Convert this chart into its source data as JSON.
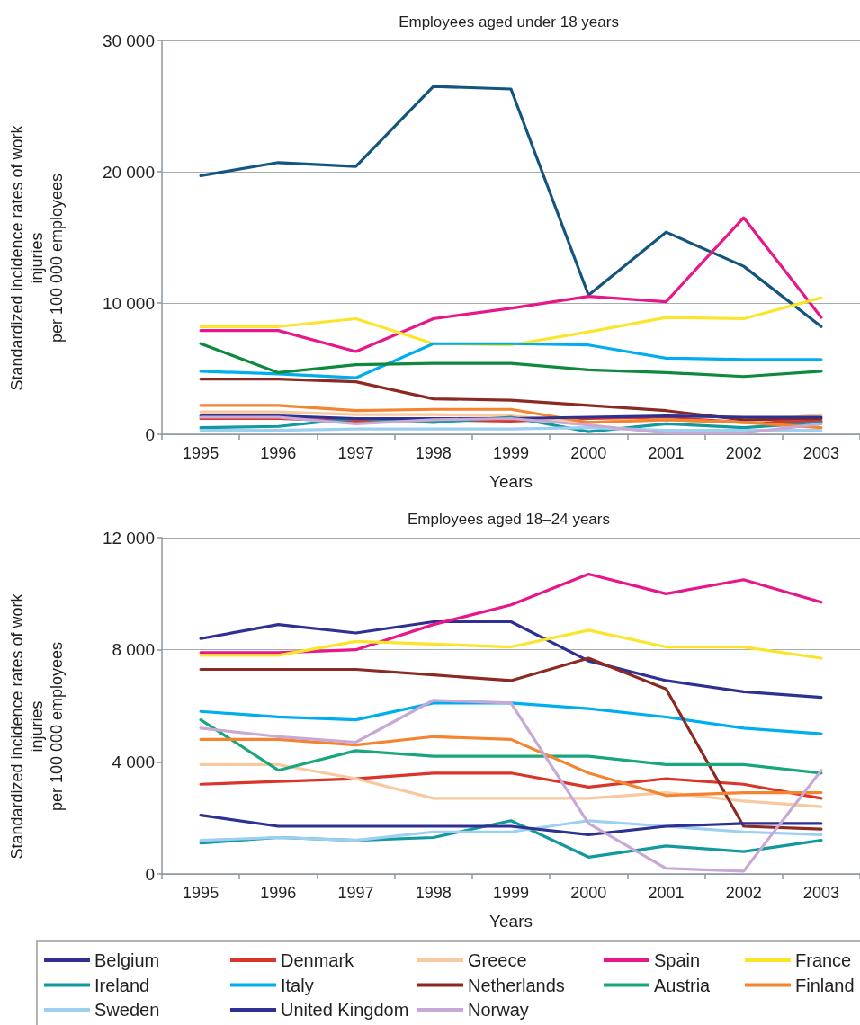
{
  "chart_data": [
    {
      "type": "line",
      "title": "Employees aged under 18 years",
      "xlabel": "Years",
      "ylabel": "Standardized incidence rates of work\ninjuries\nper 100 000 employees",
      "categories": [
        "1995",
        "1996",
        "1997",
        "1998",
        "1999",
        "2000",
        "2001",
        "2002",
        "2003"
      ],
      "ylim": [
        0,
        30000
      ],
      "yticks": [
        0,
        {
          "value": 10000,
          "label": "10 000"
        },
        {
          "value": 20000,
          "label": "20 000"
        },
        {
          "value": 30000,
          "label": "30 000"
        }
      ],
      "grid": "y",
      "marker": "none",
      "line_style": "solid",
      "series": [
        {
          "color": "#13557f",
          "values": [
            19700,
            20700,
            20400,
            26500,
            26300,
            10600,
            15400,
            12800,
            8200
          ]
        },
        {
          "color": "#d9352b",
          "values": [
            1200,
            1200,
            1000,
            1100,
            1000,
            1200,
            1300,
            900,
            1000
          ]
        },
        {
          "color": "#f6c9a0",
          "values": [
            1700,
            1700,
            1500,
            1500,
            1400,
            900,
            1100,
            900,
            1500
          ]
        },
        {
          "color": "#e8168b",
          "values": [
            7900,
            7900,
            6300,
            8800,
            9600,
            10500,
            10100,
            16500,
            8900
          ]
        },
        {
          "color": "#fbe52a",
          "values": [
            8200,
            8200,
            8800,
            6900,
            6800,
            7800,
            8900,
            8800,
            10400
          ]
        },
        {
          "color": "#12999e",
          "values": [
            500,
            600,
            1200,
            900,
            1300,
            200,
            800,
            500,
            900
          ]
        },
        {
          "color": "#00aeef",
          "values": [
            4800,
            4600,
            4300,
            6900,
            6900,
            6800,
            5800,
            5700,
            5700
          ]
        },
        {
          "color": "#8b2a23",
          "values": [
            4200,
            4200,
            4000,
            2700,
            2600,
            2200,
            1800,
            1100,
            1200
          ]
        },
        {
          "color": "#10893f",
          "values": [
            6900,
            4700,
            5300,
            5400,
            5400,
            4900,
            4700,
            4400,
            4800
          ]
        },
        {
          "color": "#f58430",
          "values": [
            2200,
            2200,
            1800,
            1900,
            1900,
            900,
            1100,
            900,
            500
          ]
        },
        {
          "color": "#9dd0f0",
          "values": [
            300,
            300,
            400,
            400,
            400,
            500,
            300,
            300,
            300
          ]
        },
        {
          "color": "#2e3192",
          "values": [
            1400,
            1400,
            1200,
            1200,
            1200,
            1300,
            1400,
            1300,
            1300
          ]
        },
        {
          "color": "#c8a8d4",
          "values": [
            1300,
            1300,
            800,
            1100,
            1200,
            700,
            100,
            100,
            800
          ]
        }
      ]
    },
    {
      "type": "line",
      "title": "Employees aged 18–24 years",
      "xlabel": "Years",
      "ylabel": "Standardized incidence rates of work\ninjuries\nper 100 000 employees",
      "categories": [
        "1995",
        "1996",
        "1997",
        "1998",
        "1999",
        "2000",
        "2001",
        "2002",
        "2003"
      ],
      "ylim": [
        0,
        12000
      ],
      "yticks": [
        0,
        {
          "value": 4000,
          "label": "4 000"
        },
        {
          "value": 8000,
          "label": "8 000"
        },
        {
          "value": 12000,
          "label": "12 000"
        }
      ],
      "grid": "y",
      "marker": "none",
      "line_style": "solid",
      "legend": "bottom",
      "series": [
        {
          "name": "Belgium",
          "color": "#2e3192",
          "values": [
            8400,
            8900,
            8600,
            9000,
            9000,
            7600,
            6900,
            6500,
            6300
          ]
        },
        {
          "name": "Denmark",
          "color": "#d9352b",
          "values": [
            3200,
            3300,
            3400,
            3600,
            3600,
            3100,
            3400,
            3200,
            2700
          ]
        },
        {
          "name": "Greece",
          "color": "#f6c9a0",
          "values": [
            3900,
            3900,
            3400,
            2700,
            2700,
            2700,
            2900,
            2600,
            2400
          ]
        },
        {
          "name": "Spain",
          "color": "#e8168b",
          "values": [
            7900,
            7900,
            8000,
            8900,
            9600,
            10700,
            10000,
            10500,
            9700
          ]
        },
        {
          "name": "France",
          "color": "#fbe52a",
          "values": [
            7800,
            7800,
            8300,
            8200,
            8100,
            8700,
            8100,
            8100,
            7700
          ]
        },
        {
          "name": "Ireland",
          "color": "#12999e",
          "values": [
            1100,
            1300,
            1200,
            1300,
            1900,
            600,
            1000,
            800,
            1200
          ]
        },
        {
          "name": "Italy",
          "color": "#00aeef",
          "values": [
            5800,
            5600,
            5500,
            6100,
            6100,
            5900,
            5600,
            5200,
            5000
          ]
        },
        {
          "name": "Netherlands",
          "color": "#8b2a23",
          "values": [
            7300,
            7300,
            7300,
            7100,
            6900,
            7700,
            6600,
            1700,
            1600
          ]
        },
        {
          "name": "Austria",
          "color": "#1aa67d",
          "values": [
            5500,
            3700,
            4400,
            4200,
            4200,
            4200,
            3900,
            3900,
            3600
          ]
        },
        {
          "name": "Finland",
          "color": "#f58430",
          "values": [
            4800,
            4800,
            4600,
            4900,
            4800,
            3600,
            2800,
            2900,
            2900
          ]
        },
        {
          "name": "Sweden",
          "color": "#9dd0f0",
          "values": [
            1200,
            1300,
            1200,
            1500,
            1500,
            1900,
            1700,
            1500,
            1400
          ]
        },
        {
          "name": "United Kingdom",
          "color": "#2e3192",
          "values": [
            2100,
            1700,
            1700,
            1700,
            1700,
            1400,
            1700,
            1800,
            1800
          ]
        },
        {
          "name": "Norway",
          "color": "#c8a8d4",
          "values": [
            5200,
            4900,
            4700,
            6200,
            6100,
            1800,
            200,
            100,
            3700
          ]
        }
      ]
    }
  ]
}
